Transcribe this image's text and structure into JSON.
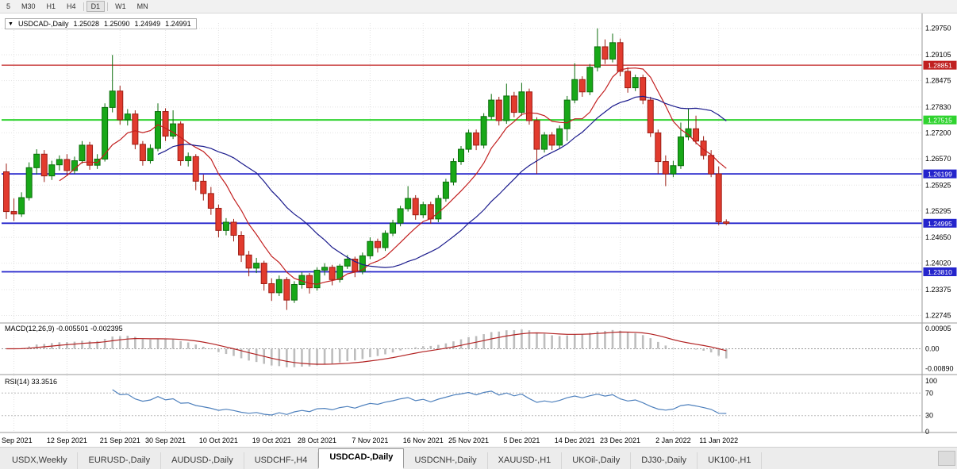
{
  "toolbar": {
    "timeframes": [
      "5",
      "M30",
      "H1",
      "H4",
      "D1",
      "W1",
      "MN"
    ],
    "active": "D1"
  },
  "chart_header": {
    "collapse_icon": "▼",
    "symbol": "USDCAD-,Daily",
    "open": "1.25028",
    "high": "1.25090",
    "low": "1.24949",
    "close": "1.24991"
  },
  "chart_data": {
    "type": "candlestick",
    "title": "USDCAD-,Daily",
    "price_range": [
      1.226,
      1.2988
    ],
    "grid": true,
    "y_ticks": [
      "1.29750",
      "1.29105",
      "1.28475",
      "1.27830",
      "1.27200",
      "1.26570",
      "1.25925",
      "1.25295",
      "1.24650",
      "1.24020",
      "1.23375",
      "1.22745"
    ],
    "x_labels": [
      {
        "i": 1,
        "t": "2 Sep 2021"
      },
      {
        "i": 8,
        "t": "12 Sep 2021"
      },
      {
        "i": 15,
        "t": "21 Sep 2021"
      },
      {
        "i": 21,
        "t": "30 Sep 2021"
      },
      {
        "i": 28,
        "t": "10 Oct 2021"
      },
      {
        "i": 35,
        "t": "19 Oct 2021"
      },
      {
        "i": 41,
        "t": "28 Oct 2021"
      },
      {
        "i": 48,
        "t": "7 Nov 2021"
      },
      {
        "i": 55,
        "t": "16 Nov 2021"
      },
      {
        "i": 61,
        "t": "25 Nov 2021"
      },
      {
        "i": 68,
        "t": "5 Dec 2021"
      },
      {
        "i": 75,
        "t": "14 Dec 2021"
      },
      {
        "i": 81,
        "t": "23 Dec 2021"
      },
      {
        "i": 88,
        "t": "2 Jan 2022"
      },
      {
        "i": 94,
        "t": "11 Jan 2022"
      }
    ],
    "candles": [
      [
        1.2625,
        1.2645,
        1.251,
        1.2528
      ],
      [
        1.2528,
        1.256,
        1.2505,
        1.2522
      ],
      [
        1.2522,
        1.2575,
        1.2515,
        1.2562
      ],
      [
        1.2562,
        1.2648,
        1.2555,
        1.2635
      ],
      [
        1.2635,
        1.268,
        1.2618,
        1.2668
      ],
      [
        1.2668,
        1.2678,
        1.26,
        1.2615
      ],
      [
        1.2615,
        1.2652,
        1.2605,
        1.2642
      ],
      [
        1.2642,
        1.2665,
        1.2628,
        1.2655
      ],
      [
        1.2655,
        1.2668,
        1.2615,
        1.2628
      ],
      [
        1.2628,
        1.2662,
        1.262,
        1.2652
      ],
      [
        1.2652,
        1.27,
        1.2645,
        1.269
      ],
      [
        1.269,
        1.2698,
        1.263,
        1.2641
      ],
      [
        1.2641,
        1.2668,
        1.2632,
        1.2656
      ],
      [
        1.2656,
        1.2792,
        1.265,
        1.2782
      ],
      [
        1.2782,
        1.291,
        1.277,
        1.2822
      ],
      [
        1.2822,
        1.2835,
        1.274,
        1.2752
      ],
      [
        1.2752,
        1.2778,
        1.2738,
        1.2766
      ],
      [
        1.2766,
        1.2775,
        1.268,
        1.2692
      ],
      [
        1.2692,
        1.27,
        1.264,
        1.2652
      ],
      [
        1.2652,
        1.2692,
        1.2645,
        1.2682
      ],
      [
        1.2682,
        1.2792,
        1.2675,
        1.2772
      ],
      [
        1.2772,
        1.278,
        1.27,
        1.2712
      ],
      [
        1.2712,
        1.2775,
        1.2705,
        1.2742
      ],
      [
        1.2742,
        1.2748,
        1.264,
        1.2652
      ],
      [
        1.2652,
        1.2672,
        1.2638,
        1.2662
      ],
      [
        1.2662,
        1.2668,
        1.258,
        1.2602
      ],
      [
        1.2602,
        1.2618,
        1.2555,
        1.2572
      ],
      [
        1.2572,
        1.2588,
        1.252,
        1.2536
      ],
      [
        1.2536,
        1.2545,
        1.2465,
        1.2482
      ],
      [
        1.2482,
        1.2512,
        1.247,
        1.2502
      ],
      [
        1.2502,
        1.251,
        1.2455,
        1.247
      ],
      [
        1.247,
        1.248,
        1.2405,
        1.2422
      ],
      [
        1.2422,
        1.2432,
        1.237,
        1.239
      ],
      [
        1.239,
        1.2415,
        1.2378,
        1.2402
      ],
      [
        1.2402,
        1.2408,
        1.2335,
        1.2352
      ],
      [
        1.2352,
        1.2365,
        1.231,
        1.233
      ],
      [
        1.233,
        1.2372,
        1.2322,
        1.2362
      ],
      [
        1.2362,
        1.2368,
        1.2288,
        1.2312
      ],
      [
        1.2312,
        1.2358,
        1.2305,
        1.235
      ],
      [
        1.235,
        1.238,
        1.234,
        1.2372
      ],
      [
        1.2372,
        1.2378,
        1.2328,
        1.2342
      ],
      [
        1.2342,
        1.2392,
        1.2335,
        1.2385
      ],
      [
        1.2385,
        1.2402,
        1.2372,
        1.2392
      ],
      [
        1.2392,
        1.2398,
        1.2348,
        1.2362
      ],
      [
        1.2362,
        1.24,
        1.2355,
        1.2395
      ],
      [
        1.2395,
        1.2422,
        1.2388,
        1.2412
      ],
      [
        1.2412,
        1.2418,
        1.2368,
        1.2382
      ],
      [
        1.2382,
        1.2428,
        1.2375,
        1.242
      ],
      [
        1.242,
        1.2465,
        1.2412,
        1.2455
      ],
      [
        1.2455,
        1.2462,
        1.2428,
        1.244
      ],
      [
        1.244,
        1.2482,
        1.2432,
        1.2475
      ],
      [
        1.2475,
        1.2508,
        1.2468,
        1.25
      ],
      [
        1.25,
        1.2542,
        1.2492,
        1.2535
      ],
      [
        1.2535,
        1.259,
        1.2528,
        1.256
      ],
      [
        1.256,
        1.2568,
        1.2508,
        1.252
      ],
      [
        1.252,
        1.2552,
        1.2512,
        1.2545
      ],
      [
        1.2545,
        1.2552,
        1.2498,
        1.251
      ],
      [
        1.251,
        1.2568,
        1.2502,
        1.256
      ],
      [
        1.256,
        1.2608,
        1.2552,
        1.26
      ],
      [
        1.26,
        1.2658,
        1.2592,
        1.265
      ],
      [
        1.265,
        1.2688,
        1.2642,
        1.268
      ],
      [
        1.268,
        1.2728,
        1.2672,
        1.272
      ],
      [
        1.272,
        1.2728,
        1.2678,
        1.269
      ],
      [
        1.269,
        1.2768,
        1.2682,
        1.276
      ],
      [
        1.276,
        1.2815,
        1.2752,
        1.28
      ],
      [
        1.28,
        1.2808,
        1.2738,
        1.275
      ],
      [
        1.275,
        1.284,
        1.2742,
        1.281
      ],
      [
        1.281,
        1.282,
        1.2758,
        1.277
      ],
      [
        1.277,
        1.2842,
        1.2762,
        1.282
      ],
      [
        1.282,
        1.2828,
        1.274,
        1.275
      ],
      [
        1.275,
        1.2758,
        1.262,
        1.268
      ],
      [
        1.268,
        1.2722,
        1.2672,
        1.2715
      ],
      [
        1.2715,
        1.2722,
        1.2678,
        1.269
      ],
      [
        1.269,
        1.2738,
        1.2682,
        1.273
      ],
      [
        1.273,
        1.281,
        1.27,
        1.28
      ],
      [
        1.28,
        1.289,
        1.2792,
        1.285
      ],
      [
        1.285,
        1.2858,
        1.2808,
        1.282
      ],
      [
        1.282,
        1.2888,
        1.2812,
        1.288
      ],
      [
        1.288,
        1.2975,
        1.287,
        1.293
      ],
      [
        1.293,
        1.2948,
        1.2888,
        1.29
      ],
      [
        1.29,
        1.2962,
        1.2892,
        1.294
      ],
      [
        1.294,
        1.295,
        1.2858,
        1.287
      ],
      [
        1.287,
        1.288,
        1.2818,
        1.283
      ],
      [
        1.283,
        1.2862,
        1.2822,
        1.2855
      ],
      [
        1.2855,
        1.2862,
        1.279,
        1.28
      ],
      [
        1.28,
        1.2808,
        1.271,
        1.272
      ],
      [
        1.272,
        1.2728,
        1.262,
        1.265
      ],
      [
        1.265,
        1.2665,
        1.259,
        1.262
      ],
      [
        1.262,
        1.2652,
        1.2612,
        1.264
      ],
      [
        1.264,
        1.2745,
        1.2632,
        1.271
      ],
      [
        1.271,
        1.278,
        1.2702,
        1.273
      ],
      [
        1.273,
        1.2762,
        1.2692,
        1.27
      ],
      [
        1.27,
        1.2712,
        1.2655,
        1.2665
      ],
      [
        1.2665,
        1.2678,
        1.2612,
        1.262
      ],
      [
        1.262,
        1.2638,
        1.2495,
        1.2503
      ],
      [
        1.25028,
        1.2509,
        1.24949,
        1.24991
      ]
    ],
    "levels": [
      {
        "price": 1.28851,
        "label": "1.28851",
        "color": "#c02020",
        "width": 1.2
      },
      {
        "price": 1.27515,
        "label": "1.27515",
        "color": "#2fd32f",
        "width": 2
      },
      {
        "price": 1.26199,
        "label": "1.26199",
        "color": "#2424cc",
        "width": 1.8
      },
      {
        "price": 1.24995,
        "label": "1.24995",
        "color": "#2424cc",
        "width": 1.8
      },
      {
        "price": 1.2381,
        "label": "1.23810",
        "color": "#2424cc",
        "width": 1.8
      }
    ],
    "overlays": [
      {
        "name": "ma-fast",
        "type": "sma",
        "period": 8,
        "color": "#c21f1f"
      },
      {
        "name": "ma-slow",
        "type": "sma",
        "period": 21,
        "color": "#1a1a8c"
      }
    ],
    "indicators": {
      "macd": {
        "label": "MACD(12,26,9)",
        "values": "-0.005501 -0.002395",
        "fast": 12,
        "slow": 26,
        "signal": 9,
        "y_ticks": [
          "0.00905",
          "0.00",
          "-0.00890"
        ],
        "range": [
          -0.0115,
          0.0115
        ]
      },
      "rsi": {
        "label": "RSI(14)",
        "value": "33.3516",
        "period": 14,
        "y_ticks": [
          "100",
          "70",
          "30",
          "0"
        ],
        "guides": [
          70,
          30
        ]
      }
    },
    "colors": {
      "background": "#ffffff",
      "grid": "#e2e2e2",
      "up": "#18a818",
      "up_border": "#0c6e0c",
      "down": "#e23b2e",
      "down_border": "#9c1d14",
      "ma_fast": "#c21f1f",
      "ma_slow": "#1a1a8c",
      "macd_hist": "#bdbdbd",
      "macd_signal": "#b22222",
      "rsi_line": "#4f81bd",
      "axis_text": "#000000",
      "separator": "#9a9a9a",
      "label_text": "#ffffff"
    }
  },
  "tabs": {
    "items": [
      {
        "label": "USDX,Weekly",
        "active": false
      },
      {
        "label": "EURUSD-,Daily",
        "active": false
      },
      {
        "label": "AUDUSD-,Daily",
        "active": false
      },
      {
        "label": "USDCHF-,H4",
        "active": false
      },
      {
        "label": "USDCAD-,Daily",
        "active": true
      },
      {
        "label": "USDCNH-,Daily",
        "active": false
      },
      {
        "label": "XAUUSD-,H1",
        "active": false
      },
      {
        "label": "UKOil-,Daily",
        "active": false
      },
      {
        "label": "DJ30-,Daily",
        "active": false
      },
      {
        "label": "UK100-,H1",
        "active": false
      }
    ]
  }
}
